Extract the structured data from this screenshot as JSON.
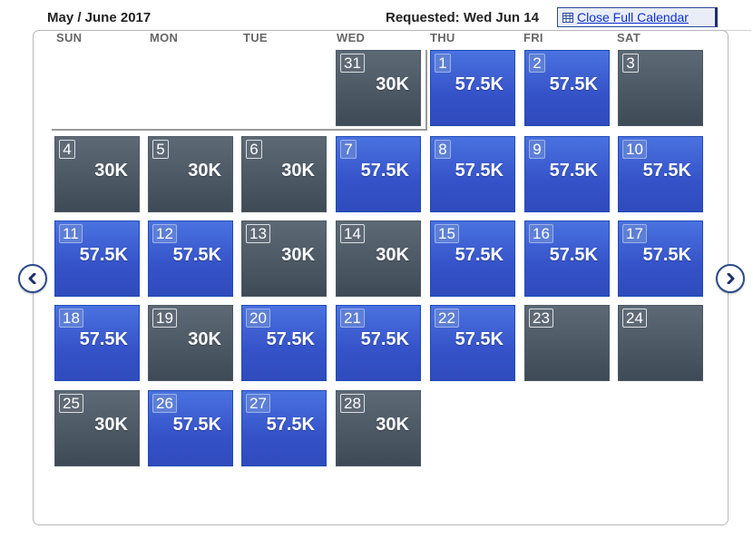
{
  "header": {
    "title": "May / June 2017",
    "requested": "Requested: Wed Jun 14",
    "close_label": "Close Full Calendar"
  },
  "weekdays": [
    "SUN",
    "MON",
    "TUE",
    "WED",
    "THU",
    "FRI",
    "SAT"
  ],
  "colors": {
    "blue": "#3a5fd4",
    "gray": "#4c5864",
    "link": "#0b2fd6"
  },
  "nav": {
    "prev_icon": "chevron-left-icon",
    "next_icon": "chevron-right-icon"
  },
  "weeks": [
    [
      {
        "day": "31",
        "miles": "30K",
        "status": "gray"
      },
      {
        "day": "1",
        "miles": "57.5K",
        "status": "blue"
      },
      {
        "day": "2",
        "miles": "57.5K",
        "status": "blue"
      },
      {
        "day": "3",
        "miles": "",
        "status": "gray"
      }
    ],
    [
      {
        "day": "4",
        "miles": "30K",
        "status": "gray"
      },
      {
        "day": "5",
        "miles": "30K",
        "status": "gray"
      },
      {
        "day": "6",
        "miles": "30K",
        "status": "gray"
      },
      {
        "day": "7",
        "miles": "57.5K",
        "status": "blue"
      },
      {
        "day": "8",
        "miles": "57.5K",
        "status": "blue"
      },
      {
        "day": "9",
        "miles": "57.5K",
        "status": "blue"
      },
      {
        "day": "10",
        "miles": "57.5K",
        "status": "blue"
      }
    ],
    [
      {
        "day": "11",
        "miles": "57.5K",
        "status": "blue"
      },
      {
        "day": "12",
        "miles": "57.5K",
        "status": "blue"
      },
      {
        "day": "13",
        "miles": "30K",
        "status": "gray"
      },
      {
        "day": "14",
        "miles": "30K",
        "status": "gray"
      },
      {
        "day": "15",
        "miles": "57.5K",
        "status": "blue"
      },
      {
        "day": "16",
        "miles": "57.5K",
        "status": "blue"
      },
      {
        "day": "17",
        "miles": "57.5K",
        "status": "blue"
      }
    ],
    [
      {
        "day": "18",
        "miles": "57.5K",
        "status": "blue"
      },
      {
        "day": "19",
        "miles": "30K",
        "status": "gray"
      },
      {
        "day": "20",
        "miles": "57.5K",
        "status": "blue"
      },
      {
        "day": "21",
        "miles": "57.5K",
        "status": "blue"
      },
      {
        "day": "22",
        "miles": "57.5K",
        "status": "blue"
      },
      {
        "day": "23",
        "miles": "",
        "status": "gray"
      },
      {
        "day": "24",
        "miles": "",
        "status": "gray"
      }
    ],
    [
      {
        "day": "25",
        "miles": "30K",
        "status": "gray"
      },
      {
        "day": "26",
        "miles": "57.5K",
        "status": "blue"
      },
      {
        "day": "27",
        "miles": "57.5K",
        "status": "blue"
      },
      {
        "day": "28",
        "miles": "30K",
        "status": "gray"
      }
    ]
  ]
}
